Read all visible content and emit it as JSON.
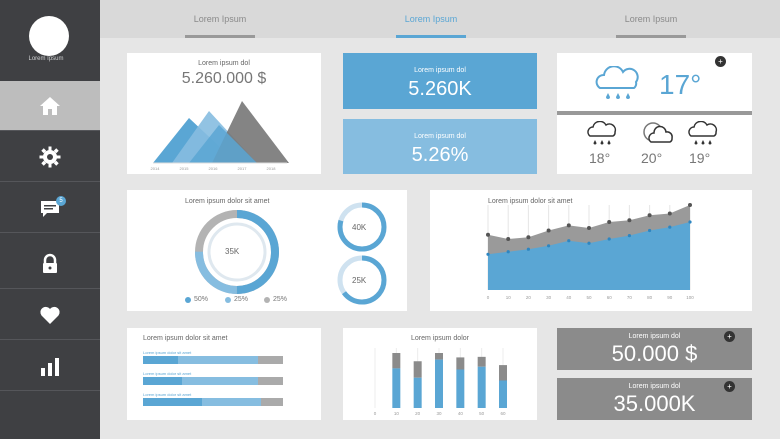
{
  "sidebar": {
    "profile_name": "Lorem Ipsum",
    "items": [
      {
        "icon": "home-icon"
      },
      {
        "icon": "gear-icon"
      },
      {
        "icon": "message-icon",
        "badge": "5"
      },
      {
        "icon": "lock-icon"
      },
      {
        "icon": "heart-icon"
      },
      {
        "icon": "bar-chart-icon"
      }
    ]
  },
  "tabs": [
    {
      "label": "Lorem Ipsum"
    },
    {
      "label": "Lorem Ipsum"
    },
    {
      "label": "Lorem Ipsum"
    }
  ],
  "mountain_card": {
    "title": "Lorem ipsum dol",
    "value": "5.260.000 $",
    "x_ticks": [
      "2014",
      "2015",
      "2016",
      "2017",
      "2018"
    ]
  },
  "kpi_blue_1": {
    "title": "Lorem ipsum dol",
    "value": "5.260K"
  },
  "kpi_blue_2": {
    "title": "Lorem ipsum dol",
    "value": "5.26%"
  },
  "weather": {
    "now_temp": "17°",
    "forecast": [
      {
        "icon": "cloud-rain-icon",
        "temp": "18°"
      },
      {
        "icon": "cloud-moon-icon",
        "temp": "20°"
      },
      {
        "icon": "cloud-rain-icon",
        "temp": "19°"
      }
    ]
  },
  "donut_card": {
    "title": "Lorem ipsum dolor sit amet",
    "center": "35K",
    "small_1": "40K",
    "small_2": "25K",
    "legend": [
      {
        "label": "50%",
        "color": "#5aa6d4"
      },
      {
        "label": "25%",
        "color": "#86bde0"
      },
      {
        "label": "25%",
        "color": "#b3b3b3"
      }
    ]
  },
  "area_card": {
    "title": "Lorem ipsum dolor sit amet",
    "x_ticks": [
      "0",
      "10",
      "20",
      "30",
      "40",
      "50",
      "60",
      "70",
      "80",
      "90",
      "100"
    ],
    "gray_values": [
      65,
      60,
      62,
      70,
      76,
      73,
      80,
      82,
      88,
      90,
      100
    ],
    "blue_values": [
      42,
      45,
      48,
      52,
      58,
      55,
      60,
      64,
      70,
      74,
      80
    ]
  },
  "hbar_card": {
    "title": "Lorem ipsum dolor sit amet",
    "rows": [
      {
        "label": "Lorem ipsum dolor sit amet",
        "a": 0.25,
        "b": 0.82
      },
      {
        "label": "Lorem ipsum dolor sit amet",
        "a": 0.28,
        "b": 0.82
      },
      {
        "label": "Lorem ipsum dolor sit amet",
        "a": 0.42,
        "b": 0.84
      }
    ]
  },
  "vbar_card": {
    "title": "Lorem ipsum dolor",
    "x_ticks": [
      "0",
      "10",
      "20",
      "30",
      "40",
      "50",
      "60"
    ],
    "bars": [
      {
        "blue": 0.72,
        "gray": 0.28
      },
      {
        "blue": 0.55,
        "gray": 0.3
      },
      {
        "blue": 0.88,
        "gray": 0.12
      },
      {
        "blue": 0.7,
        "gray": 0.22
      },
      {
        "blue": 0.75,
        "gray": 0.18
      },
      {
        "blue": 0.5,
        "gray": 0.28
      }
    ]
  },
  "kpi_gray_1": {
    "title": "Lorem ipsum dol",
    "value": "50.000 $"
  },
  "kpi_gray_2": {
    "title": "Lorem ipsum dol",
    "value": "35.000K"
  }
}
